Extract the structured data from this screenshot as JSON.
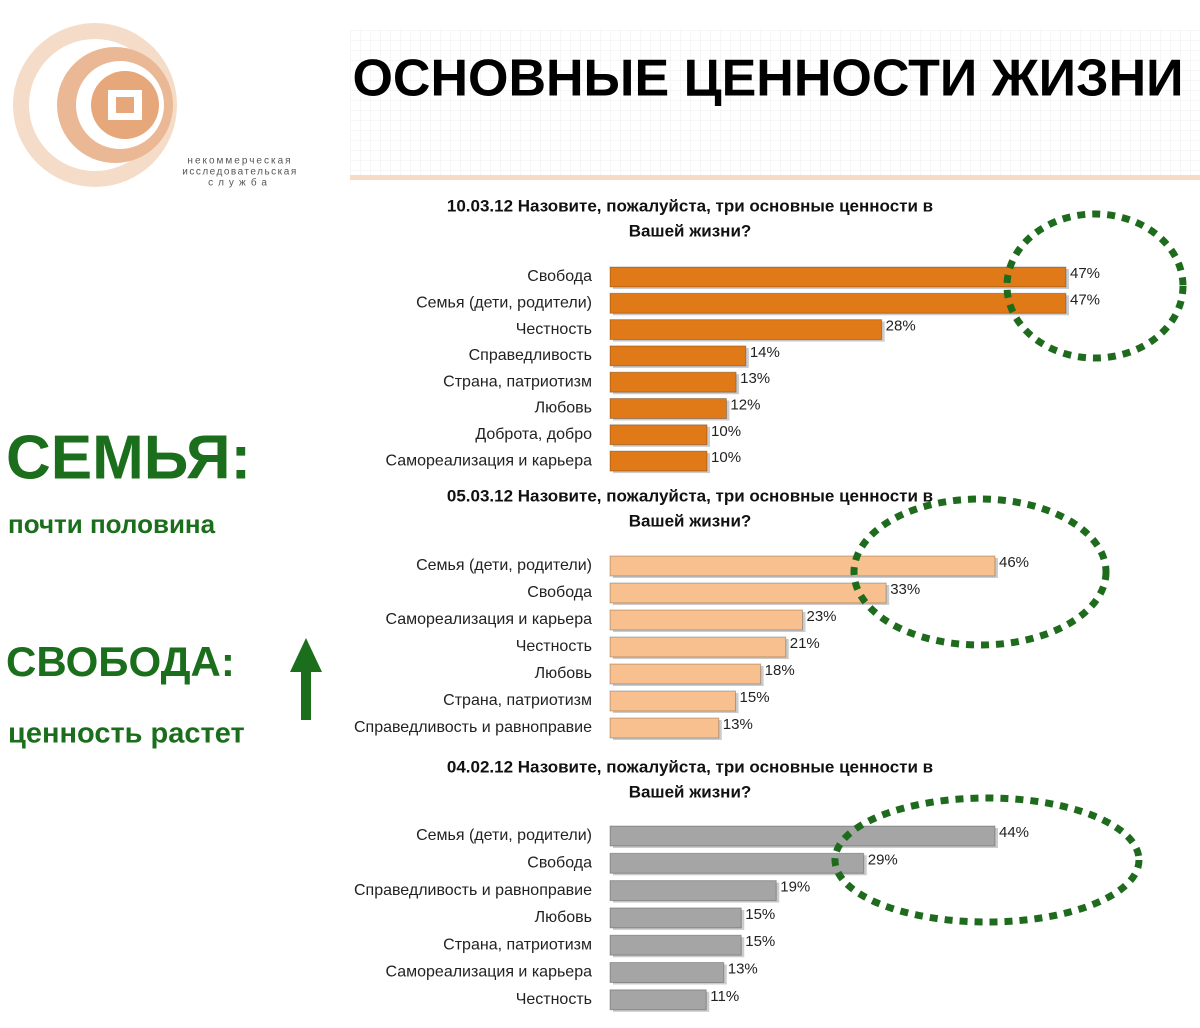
{
  "header": {
    "title": "ОСНОВНЫЕ ЦЕННОСТИ ЖИЗНИ",
    "logo_lines": [
      "некоммерческая",
      "исследовательская",
      "служба"
    ]
  },
  "side": {
    "headline_1": "СЕМЬЯ:",
    "note_1": "почти половина",
    "headline_2": "СВОБОДА:",
    "note_2": "ценность растет"
  },
  "chart_data": [
    {
      "type": "bar",
      "orientation": "horizontal",
      "title": [
        "10.03.12 Назовите, пожалуйста, три основные ценности в",
        "Вашей жизни?"
      ],
      "color": "#e07a18",
      "categories": [
        "Свобода",
        "Семья (дети, родители)",
        "Честность",
        "Справедливость",
        "Страна, патриотизм",
        "Любовь",
        "Доброта, добро",
        "Самореализация и карьера"
      ],
      "values": [
        47,
        47,
        28,
        14,
        13,
        12,
        10,
        10
      ],
      "value_labels": [
        "47%",
        "47%",
        "28%",
        "14%",
        "13%",
        "12%",
        "10%",
        "10%"
      ]
    },
    {
      "type": "bar",
      "orientation": "horizontal",
      "title": [
        "05.03.12 Назовите, пожалуйста, три основные ценности в",
        "Вашей жизни?"
      ],
      "color": "#f8c08e",
      "categories": [
        "Семья (дети, родители)",
        "Свобода",
        "Самореализация и карьера",
        "Честность",
        "Любовь",
        "Страна, патриотизм",
        "Справедливость и равноправие"
      ],
      "values": [
        46,
        33,
        23,
        21,
        18,
        15,
        13
      ],
      "value_labels": [
        "46%",
        "33%",
        "23%",
        "21%",
        "18%",
        "15%",
        "13%"
      ]
    },
    {
      "type": "bar",
      "orientation": "horizontal",
      "title": [
        "04.02.12 Назовите, пожалуйста, три основные ценности в",
        "Вашей жизни?"
      ],
      "color": "#a5a5a5",
      "categories": [
        "Семья (дети, родители)",
        "Свобода",
        "Справедливость и равноправие",
        "Любовь",
        "Страна, патриотизм",
        "Самореализация и карьера",
        "Честность"
      ],
      "values": [
        44,
        29,
        19,
        15,
        15,
        13,
        11
      ],
      "value_labels": [
        "44%",
        "29%",
        "19%",
        "15%",
        "15%",
        "13%",
        "11%"
      ]
    }
  ]
}
